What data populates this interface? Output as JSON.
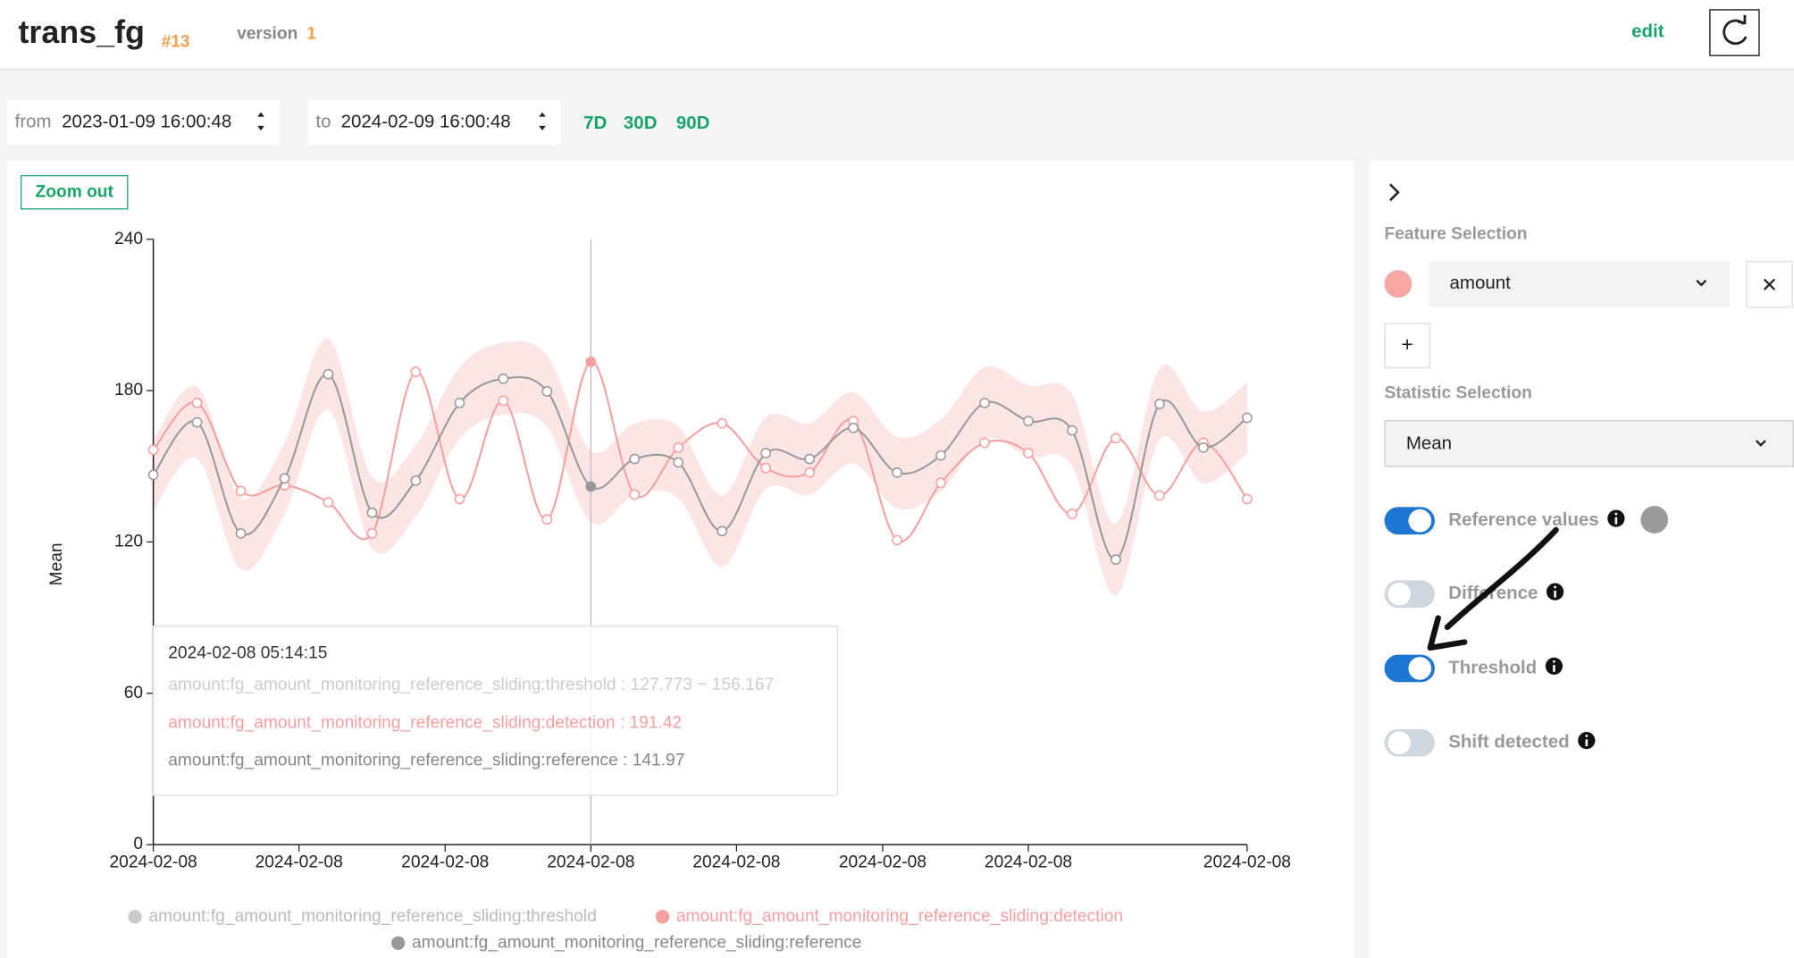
{
  "header": {
    "title": "trans_fg",
    "id": "#13",
    "version_label": "version",
    "version": "1",
    "edit": "edit"
  },
  "range": {
    "from_label": "from",
    "from": "2023-01-09 16:00:48",
    "to_label": "to",
    "to": "2024-02-09 16:00:48",
    "presets": [
      "7D",
      "30D",
      "90D"
    ]
  },
  "zoom_out": "Zoom out",
  "chart_data": {
    "type": "line",
    "y_label": "Mean",
    "categories": [
      null,
      null,
      null,
      null,
      null,
      null,
      null,
      null,
      null,
      null,
      null,
      null,
      null,
      null,
      null,
      null,
      null,
      null,
      null,
      null,
      null,
      null,
      null,
      null,
      null,
      null
    ],
    "xlim": [
      0,
      25
    ],
    "xticks": [
      {
        "value": 0,
        "label": "2024-02-08"
      },
      {
        "value": 3.33,
        "label": "2024-02-08"
      },
      {
        "value": 6.67,
        "label": "2024-02-08"
      },
      {
        "value": 10,
        "label": "2024-02-08"
      },
      {
        "value": 13.33,
        "label": "2024-02-08"
      },
      {
        "value": 16.67,
        "label": "2024-02-08"
      },
      {
        "value": 20,
        "label": "2024-02-08"
      },
      {
        "value": 25,
        "label": "2024-02-08"
      }
    ],
    "ylim": [
      0,
      240
    ],
    "yticks": [
      0,
      60,
      120,
      180,
      240
    ],
    "band_color": "#fbe1e1",
    "series": [
      {
        "name": "amount:fg_amount_monitoring_reference_sliding:threshold",
        "color": "#cccccc",
        "low": [
          132.4,
          153.2,
          109.2,
          131.0,
          172.3,
          117.4,
          130.1,
          160.9,
          170.5,
          165.5,
          127.773,
          138.7,
          137.3,
          110.1,
          141.0,
          138.7,
          151.0,
          133.3,
          140.1,
          160.9,
          153.7,
          150.0,
          98.8,
          160.5,
          143.2,
          155.0
        ],
        "high": [
          160.8,
          181.6,
          137.6,
          159.4,
          200.7,
          145.8,
          158.5,
          189.3,
          198.9,
          193.9,
          156.167,
          167.1,
          165.7,
          138.5,
          169.4,
          167.1,
          179.4,
          161.7,
          168.5,
          189.3,
          182.1,
          178.4,
          127.2,
          188.9,
          171.6,
          183.4
        ]
      },
      {
        "name": "amount:fg_amount_monitoring_reference_sliding:detection",
        "color": "#f4a0a0",
        "values": [
          156.5,
          175.1,
          140.2,
          142.5,
          135.7,
          123.4,
          187.4,
          137.0,
          176.0,
          128.9,
          191.42,
          138.8,
          157.4,
          167.0,
          149.3,
          147.5,
          167.9,
          120.7,
          143.4,
          159.3,
          155.2,
          131.1,
          161.1,
          138.4,
          159.3,
          137.0
        ]
      },
      {
        "name": "amount:fg_amount_monitoring_reference_sliding:reference",
        "color": "#999999",
        "values": [
          146.6,
          167.4,
          123.4,
          145.2,
          186.5,
          131.6,
          144.3,
          175.1,
          184.7,
          179.7,
          141.97,
          152.9,
          151.5,
          124.3,
          155.2,
          152.9,
          165.2,
          147.5,
          154.3,
          175.1,
          167.9,
          164.2,
          113.0,
          174.7,
          157.4,
          169.2
        ]
      }
    ],
    "hover_index": 10,
    "tooltip": {
      "title": "2024-02-08 05:14:15",
      "lines": [
        "amount:fg_amount_monitoring_reference_sliding:threshold : 127.773 ~ 156.167",
        "amount:fg_amount_monitoring_reference_sliding:detection : 191.42",
        "amount:fg_amount_monitoring_reference_sliding:reference : 141.97"
      ]
    }
  },
  "sidebar": {
    "feature_heading": "Feature Selection",
    "feature": "amount",
    "add": "+",
    "statistic_heading": "Statistic Selection",
    "statistic": "Mean",
    "toggles": [
      {
        "label": "Reference values",
        "on": true
      },
      {
        "label": "Difference",
        "on": false
      },
      {
        "label": "Threshold",
        "on": true
      },
      {
        "label": "Shift detected",
        "on": false
      }
    ]
  }
}
